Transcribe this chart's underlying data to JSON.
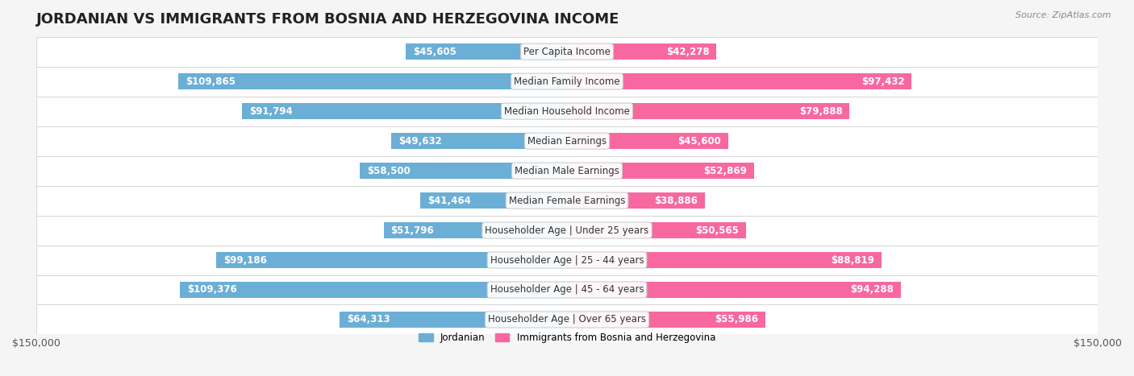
{
  "title": "JORDANIAN VS IMMIGRANTS FROM BOSNIA AND HERZEGOVINA INCOME",
  "source": "Source: ZipAtlas.com",
  "categories": [
    "Per Capita Income",
    "Median Family Income",
    "Median Household Income",
    "Median Earnings",
    "Median Male Earnings",
    "Median Female Earnings",
    "Householder Age | Under 25 years",
    "Householder Age | 25 - 44 years",
    "Householder Age | 45 - 64 years",
    "Householder Age | Over 65 years"
  ],
  "jordanian_values": [
    45605,
    109865,
    91794,
    49632,
    58500,
    41464,
    51796,
    99186,
    109376,
    64313
  ],
  "immigrant_values": [
    42278,
    97432,
    79888,
    45600,
    52869,
    38886,
    50565,
    88819,
    94288,
    55986
  ],
  "jordanian_labels": [
    "$45,605",
    "$109,865",
    "$91,794",
    "$49,632",
    "$58,500",
    "$41,464",
    "$51,796",
    "$99,186",
    "$109,376",
    "$64,313"
  ],
  "immigrant_labels": [
    "$42,278",
    "$97,432",
    "$79,888",
    "$45,600",
    "$52,869",
    "$38,886",
    "$50,565",
    "$88,819",
    "$94,288",
    "$55,986"
  ],
  "jordanian_color": "#6baed6",
  "immigrant_color": "#f768a1",
  "jordanian_dark_color": "#4292c6",
  "immigrant_dark_color": "#dd3497",
  "max_value": 150000,
  "bar_height": 0.55,
  "background_color": "#f5f5f5",
  "row_bg_color": "#ffffff",
  "legend_jordanian": "Jordanian",
  "legend_immigrant": "Immigrants from Bosnia and Herzegovina",
  "title_fontsize": 13,
  "label_fontsize": 8.5,
  "axis_fontsize": 9
}
